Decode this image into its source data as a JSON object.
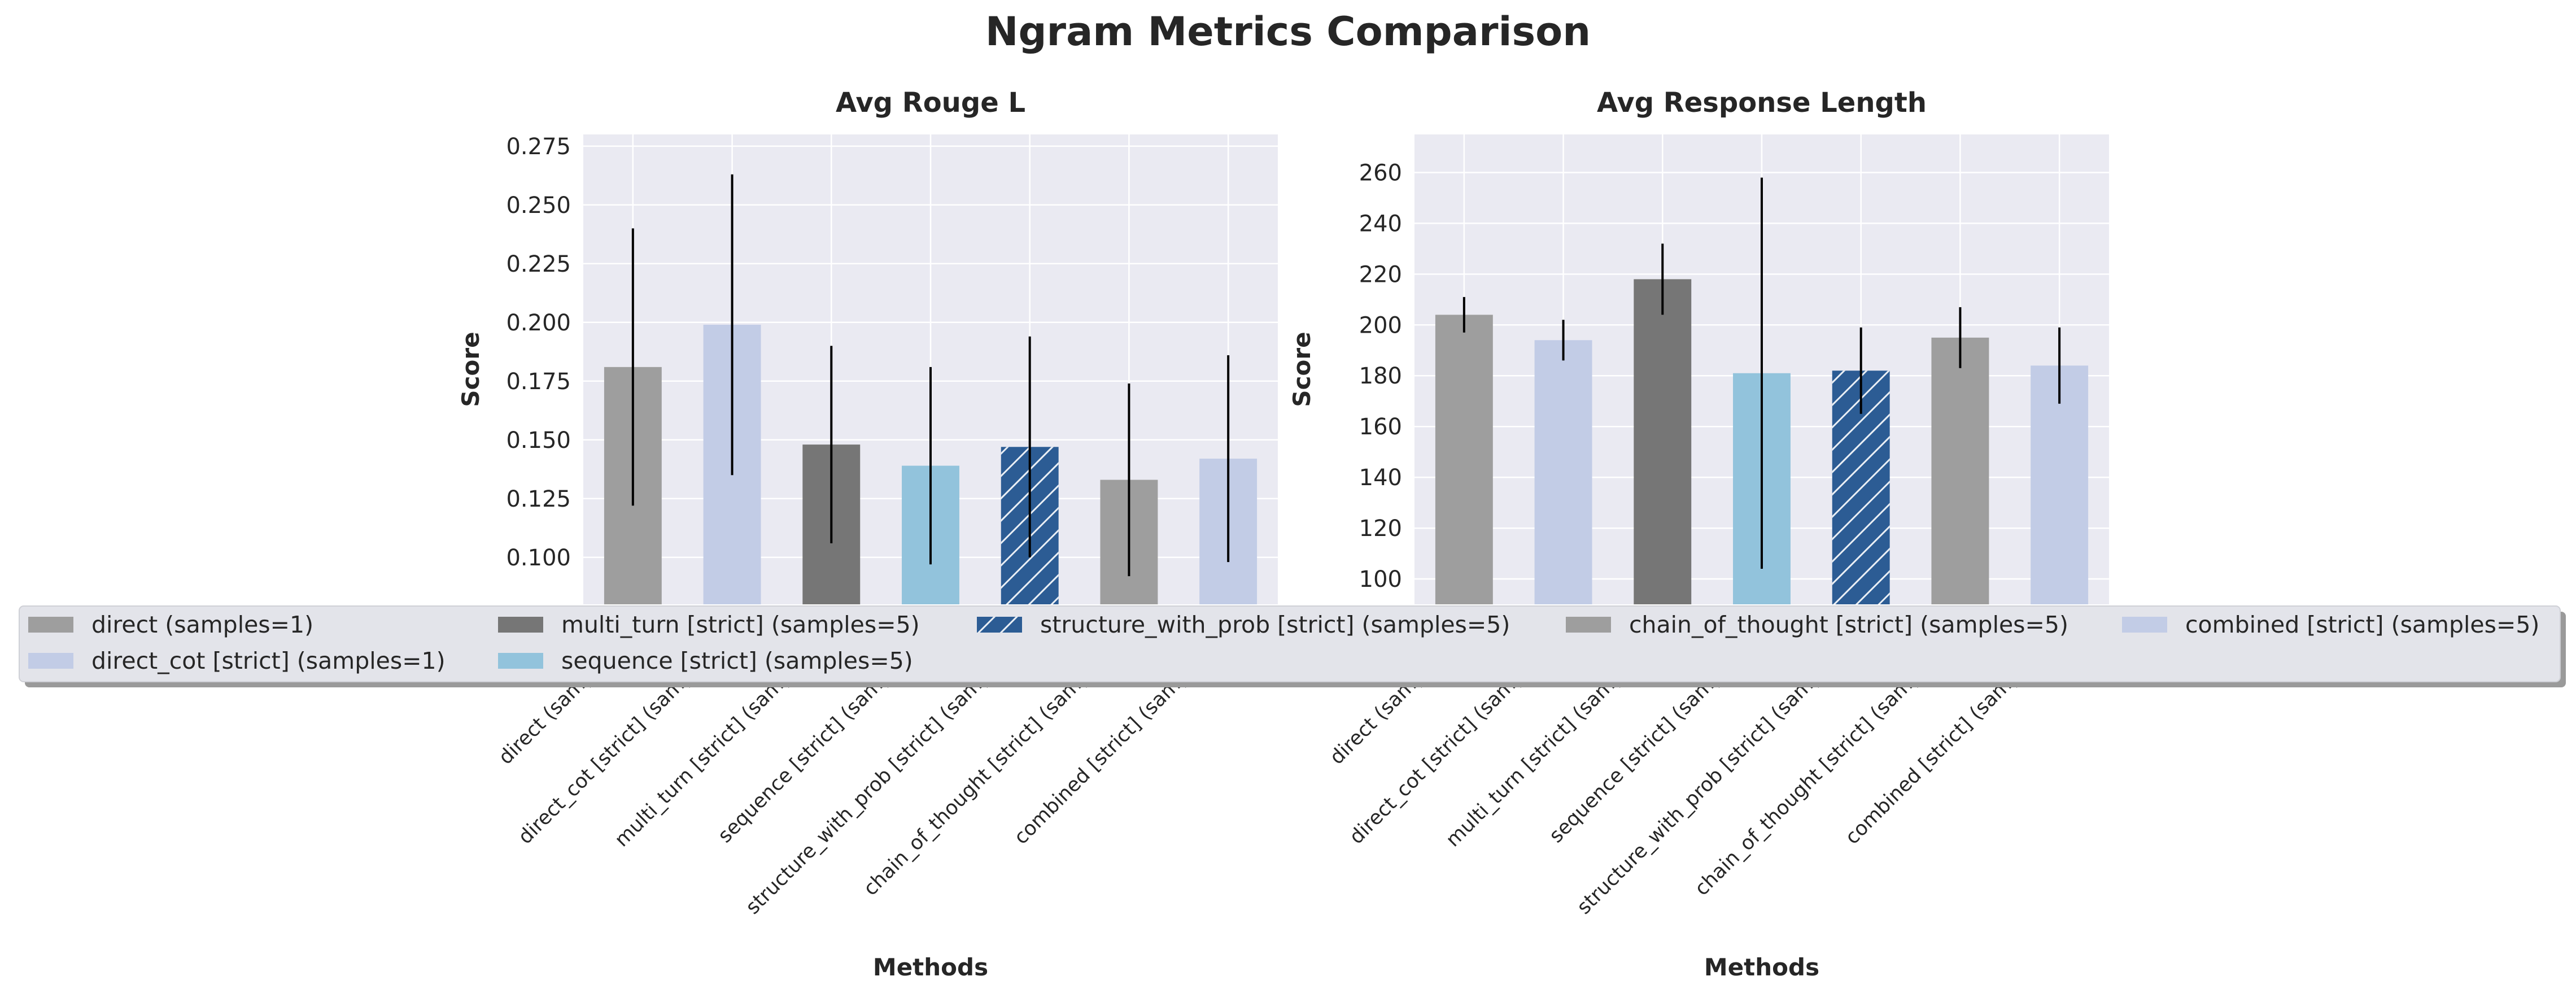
{
  "title": "Ngram Metrics Comparison",
  "chart_data": [
    {
      "type": "bar",
      "title": "Avg Rouge L",
      "xlabel": "Methods",
      "ylabel": "Score",
      "categories": [
        "direct (samples=1)",
        "direct_cot [strict] (samples=1)",
        "multi_turn [strict] (samples=5)",
        "sequence [strict] (samples=5)",
        "structure_with_prob [strict] (samples=5)",
        "chain_of_thought [strict] (samples=5)",
        "combined [strict] (samples=5)"
      ],
      "values": [
        0.181,
        0.199,
        0.148,
        0.139,
        0.147,
        0.133,
        0.142
      ],
      "errors": [
        0.059,
        0.064,
        0.042,
        0.042,
        0.047,
        0.041,
        0.044
      ],
      "ylim": [
        0.08,
        0.28
      ],
      "yticks": [
        0.1,
        0.125,
        0.15,
        0.175,
        0.2,
        0.225,
        0.25,
        0.275
      ],
      "ytick_labels": [
        "0.100",
        "0.125",
        "0.150",
        "0.175",
        "0.200",
        "0.225",
        "0.250",
        "0.275"
      ],
      "grid": true
    },
    {
      "type": "bar",
      "title": "Avg Response Length",
      "xlabel": "Methods",
      "ylabel": "Score",
      "categories": [
        "direct (samples=1)",
        "direct_cot [strict] (samples=1)",
        "multi_turn [strict] (samples=5)",
        "sequence [strict] (samples=5)",
        "structure_with_prob [strict] (samples=5)",
        "chain_of_thought [strict] (samples=5)",
        "combined [strict] (samples=5)"
      ],
      "values": [
        204,
        194,
        218,
        181,
        182,
        195,
        184
      ],
      "errors": [
        7,
        8,
        14,
        77,
        17,
        12,
        15
      ],
      "ylim": [
        90,
        275
      ],
      "yticks": [
        100,
        120,
        140,
        160,
        180,
        200,
        220,
        240,
        260
      ],
      "ytick_labels": [
        "100",
        "120",
        "140",
        "160",
        "180",
        "200",
        "220",
        "240",
        "260"
      ],
      "grid": true
    }
  ],
  "legend": {
    "placement": "lower center, overlapping plots",
    "entries": [
      {
        "label": "direct (samples=1)",
        "color": "#9e9e9e",
        "hatch": false
      },
      {
        "label": "direct_cot [strict] (samples=1)",
        "color": "#c2cce6",
        "hatch": false
      },
      {
        "label": "multi_turn [strict] (samples=5)",
        "color": "#767676",
        "hatch": false
      },
      {
        "label": "sequence [strict] (samples=5)",
        "color": "#92c3dc",
        "hatch": false
      },
      {
        "label": "structure_with_prob [strict] (samples=5)",
        "color": "#2c5c94",
        "hatch": true
      },
      {
        "label": "chain_of_thought [strict] (samples=5)",
        "color": "#9e9e9e",
        "hatch": false
      },
      {
        "label": "combined [strict] (samples=5)",
        "color": "#c2cce6",
        "hatch": false
      }
    ]
  },
  "colors": {
    "plot_bg": "#eaeaf2",
    "grid": "#ffffff",
    "legend_bg": "#e3e4ea"
  }
}
